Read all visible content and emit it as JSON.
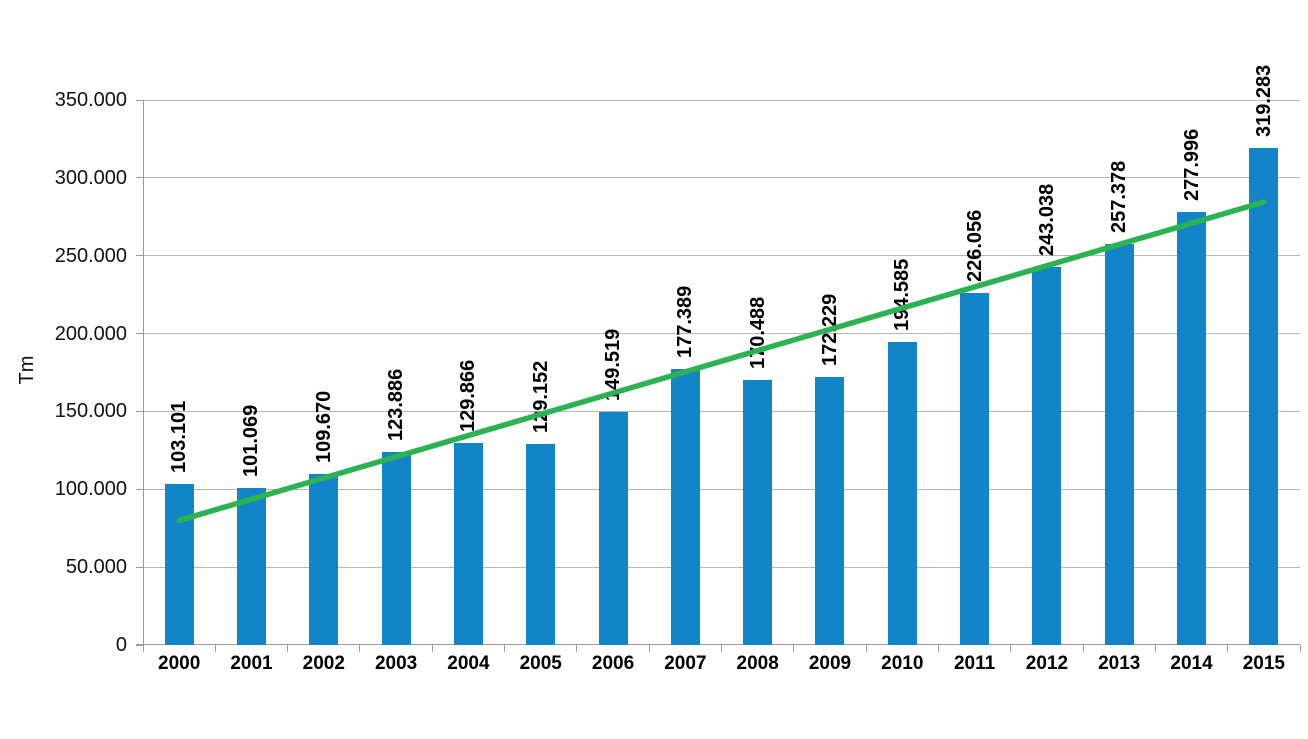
{
  "chart_data": {
    "type": "bar",
    "ylabel": "Tm",
    "xlabel": "",
    "categories": [
      "2000",
      "2001",
      "2002",
      "2003",
      "2004",
      "2005",
      "2006",
      "2007",
      "2008",
      "2009",
      "2010",
      "2011",
      "2012",
      "2013",
      "2014",
      "2015"
    ],
    "values": [
      103101,
      101069,
      109670,
      123886,
      129866,
      129152,
      149519,
      177389,
      170488,
      172229,
      194585,
      226056,
      243038,
      257378,
      277996,
      319283
    ],
    "value_labels": [
      "103.101",
      "101.069",
      "109.670",
      "123.886",
      "129.866",
      "129.152",
      "149.519",
      "177.389",
      "170.488",
      "172.229",
      "194.585",
      "226.056",
      "243.038",
      "257.378",
      "277.996",
      "319.283"
    ],
    "ylim": [
      0,
      350000
    ],
    "y_tick_values": [
      0,
      50000,
      100000,
      150000,
      200000,
      250000,
      300000,
      350000
    ],
    "y_tick_labels": [
      "0",
      "50.000",
      "100.000",
      "150.000",
      "200.000",
      "250.000",
      "300.000",
      "350.000"
    ],
    "grid": "horizontal-gridlines",
    "legend": "none",
    "colors": {
      "bar": "#1185c8",
      "trendline": "#2db253",
      "gridline": "#b5b5b5",
      "axis": "#9a9a9a",
      "text": "#111111"
    },
    "trendline": {
      "type": "linear",
      "start_value": 80000,
      "end_value": 284500
    }
  }
}
